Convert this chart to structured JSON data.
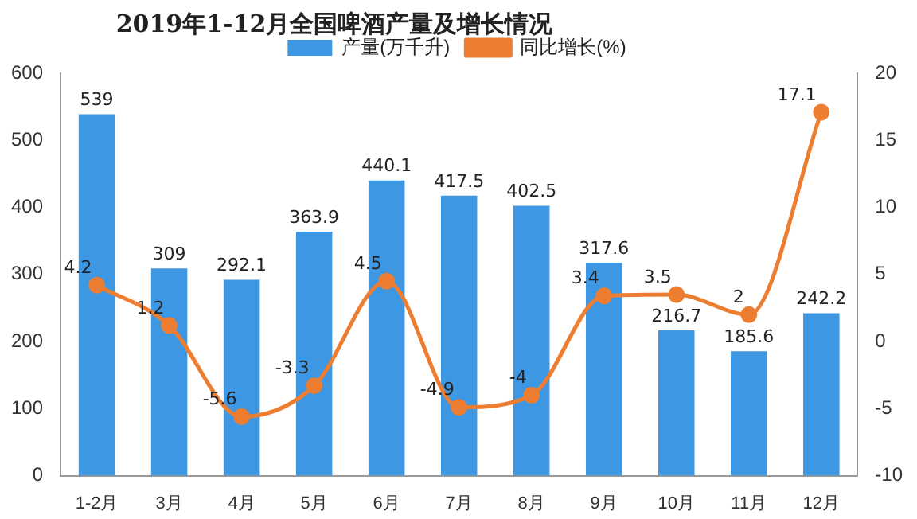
{
  "chart_data": {
    "type": "bar",
    "title": "2019年1-12月全国啤酒产量及增长情况",
    "categories": [
      "1-2月",
      "3月",
      "4月",
      "5月",
      "6月",
      "7月",
      "8月",
      "9月",
      "10月",
      "11月",
      "12月"
    ],
    "series": [
      {
        "name": "产量(万千升)",
        "color": "#3d97e3",
        "values": [
          539,
          309,
          292.1,
          363.9,
          440.1,
          417.5,
          402.5,
          317.6,
          216.7,
          185.6,
          242.2
        ]
      },
      {
        "name": "同比增长(%)",
        "type": "line",
        "axis": "y2",
        "color": "#ed7d31",
        "values": [
          4.2,
          1.2,
          -5.6,
          -3.3,
          4.5,
          -4.9,
          -4,
          3.4,
          3.5,
          2,
          17.1
        ]
      }
    ],
    "ylim": [
      0,
      600
    ],
    "yticks": [
      0,
      100,
      200,
      300,
      400,
      500,
      600
    ],
    "y2lim": [
      -10,
      20
    ],
    "y2ticks": [
      -10,
      -5,
      0,
      5,
      10,
      15,
      20
    ],
    "grid": false,
    "legend": "top",
    "marker": "circle",
    "data_labels": true
  }
}
